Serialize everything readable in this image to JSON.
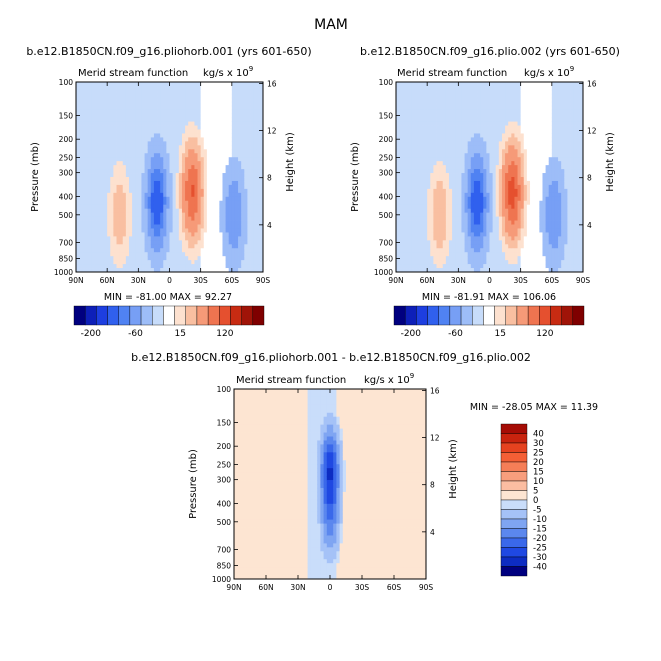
{
  "figure_title": "MAM",
  "chart_data": [
    {
      "type": "heatmap",
      "title": "b.e12.B1850CN.f09_g16.pliohorb.001 (yrs 601-650)",
      "subtitle": "Merid stream function",
      "units_base": "kg/s x 10",
      "units_exp": "9",
      "xlabel": "",
      "ylabel": "Pressure (mb)",
      "y2label": "Height (km)",
      "x_ticks": [
        "90N",
        "60N",
        "30N",
        "0",
        "30S",
        "60S",
        "90S"
      ],
      "y_ticks": [
        "100",
        "150",
        "200",
        "250",
        "300",
        "400",
        "500",
        "700",
        "850",
        "1000"
      ],
      "y2_ticks": [
        "16",
        "12",
        "8",
        "4"
      ],
      "stats": "MIN = -81.00   MAX = 92.27",
      "min": -81.0,
      "max": 92.27,
      "features": [
        {
          "lat": -22,
          "p": 380,
          "value": 92
        },
        {
          "lat": 12,
          "p": 430,
          "value": -81
        },
        {
          "lat": -62,
          "p": 500,
          "value": -40
        },
        {
          "lat": 48,
          "p": 500,
          "value": 25
        }
      ]
    },
    {
      "type": "heatmap",
      "title": "b.e12.B1850CN.f09_g16.plio.002 (yrs 601-650)",
      "subtitle": "Merid stream function",
      "units_base": "kg/s x 10",
      "units_exp": "9",
      "xlabel": "",
      "ylabel": "Pressure (mb)",
      "y2label": "Height (km)",
      "x_ticks": [
        "90N",
        "60N",
        "30N",
        "0",
        "30S",
        "60S",
        "90S"
      ],
      "y_ticks": [
        "100",
        "150",
        "200",
        "250",
        "300",
        "400",
        "500",
        "700",
        "850",
        "1000"
      ],
      "y2_ticks": [
        "16",
        "12",
        "8",
        "4"
      ],
      "stats": "MIN = -81.91   MAX = 106.06",
      "min": -81.91,
      "max": 106.06,
      "features": [
        {
          "lat": -22,
          "p": 380,
          "value": 106
        },
        {
          "lat": 12,
          "p": 430,
          "value": -82
        },
        {
          "lat": -62,
          "p": 500,
          "value": -40
        },
        {
          "lat": 48,
          "p": 500,
          "value": 30
        }
      ]
    },
    {
      "type": "heatmap",
      "title": "b.e12.B1850CN.f09_g16.pliohorb.001 - b.e12.B1850CN.f09_g16.plio.002",
      "subtitle": "Merid stream function",
      "units_base": "kg/s x 10",
      "units_exp": "9",
      "xlabel": "",
      "ylabel": "Pressure (mb)",
      "y2label": "Height (km)",
      "x_ticks": [
        "90N",
        "60N",
        "30N",
        "0",
        "30S",
        "60S",
        "90S"
      ],
      "y_ticks": [
        "100",
        "150",
        "200",
        "250",
        "300",
        "400",
        "500",
        "700",
        "850",
        "1000"
      ],
      "y2_ticks": [
        "16",
        "12",
        "8",
        "4"
      ],
      "stats": "MIN = -28.05   MAX = 11.39",
      "min": -28.05,
      "max": 11.39,
      "features": [
        {
          "lat": 0,
          "p": 260,
          "value": -28
        },
        {
          "lat": 0,
          "p": 500,
          "value": -15
        },
        {
          "lat": -45,
          "p": 500,
          "value": 3
        },
        {
          "lat": 40,
          "p": 400,
          "value": 2
        }
      ]
    }
  ],
  "colorbar_top": {
    "labels": [
      "-200",
      "-60",
      "15",
      "120"
    ],
    "colors": [
      "#00007f",
      "#0d1fb8",
      "#1d3ee0",
      "#3060ee",
      "#5082f2",
      "#779ff5",
      "#9dbdf8",
      "#c7dcfa",
      "#ffffff",
      "#fde1cf",
      "#f9bfa1",
      "#f69a78",
      "#ef7450",
      "#e5502f",
      "#c82b12",
      "#a01408",
      "#7f0000"
    ]
  },
  "colorbar_diff": {
    "labels": [
      "40",
      "30",
      "25",
      "20",
      "15",
      "10",
      "5",
      "0",
      "-5",
      "-10",
      "-15",
      "-20",
      "-25",
      "-30",
      "-40"
    ],
    "colors": [
      "#a50c05",
      "#c8230e",
      "#e5421f",
      "#f45f35",
      "#f57e57",
      "#f89e7d",
      "#fbbda1",
      "#fde5d2",
      "#c9ddfa",
      "#a5c2f7",
      "#7fa5f2",
      "#5b87ee",
      "#3a68ea",
      "#1f48e2",
      "#0d2cc2",
      "#00007f"
    ]
  },
  "colors": {
    "neg_light": "#d2e5fb",
    "pos_light": "#fde7d6"
  }
}
